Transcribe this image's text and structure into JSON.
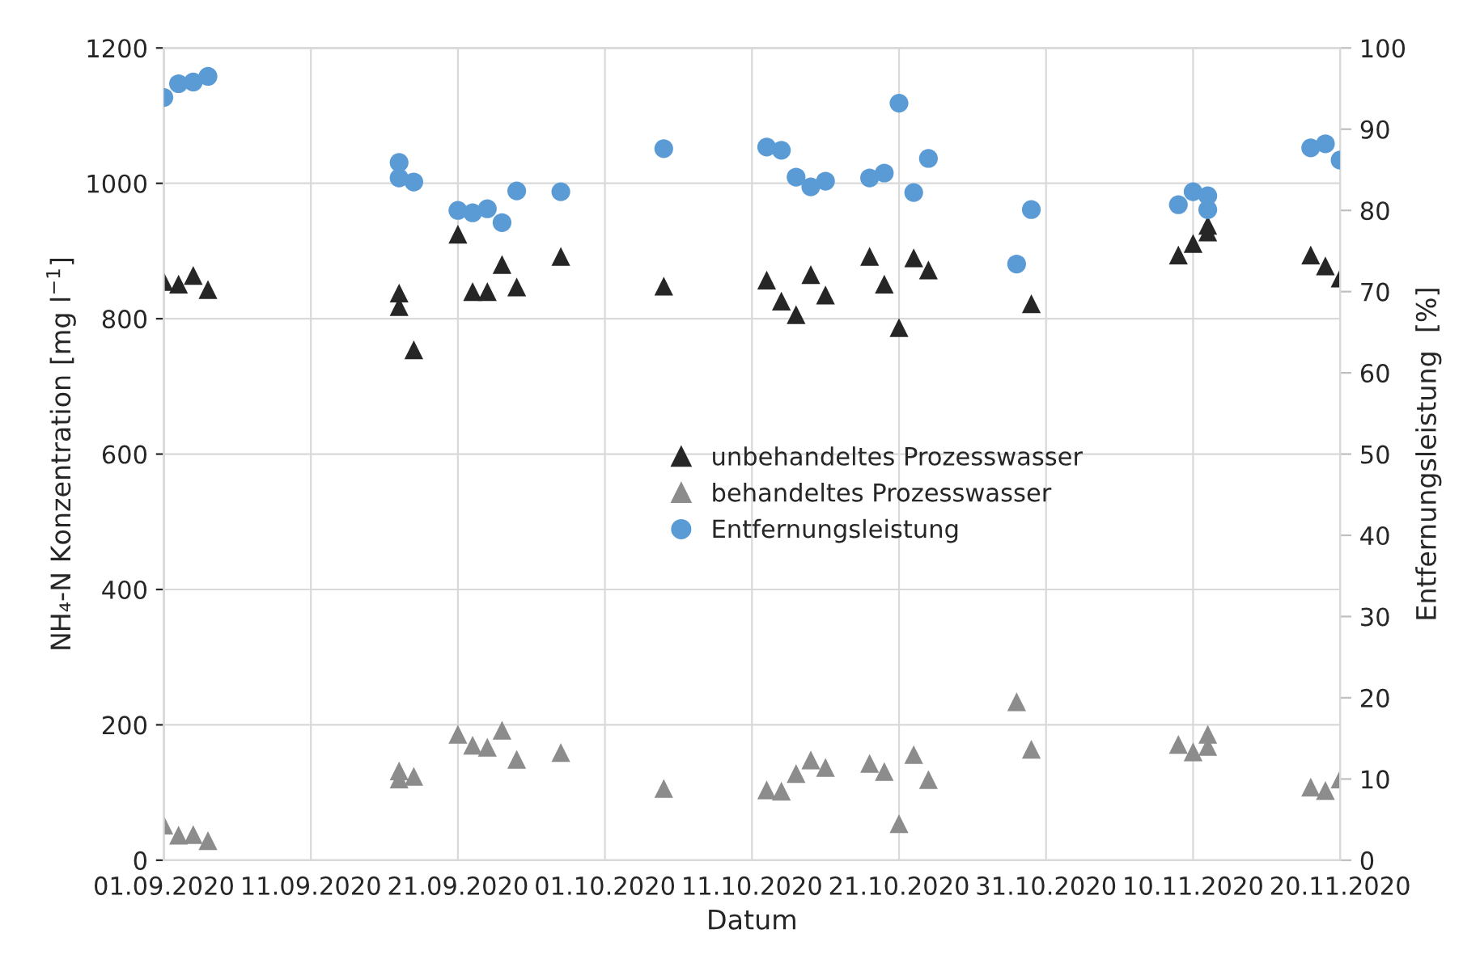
{
  "chart_data": {
    "type": "scatter",
    "xlabel": "Datum",
    "ylabel": "NH₄-N Konzentration [mg l$^{−1}$]",
    "y2label": "Entfernungsleistung  [%]",
    "xlim": [
      "2020-09-01",
      "2020-11-20"
    ],
    "xticks": [
      {
        "value": "2020-09-01",
        "label": "01.09.2020"
      },
      {
        "value": "2020-09-11",
        "label": "11.09.2020"
      },
      {
        "value": "2020-09-21",
        "label": "21.09.2020"
      },
      {
        "value": "2020-10-01",
        "label": "01.10.2020"
      },
      {
        "value": "2020-10-11",
        "label": "11.10.2020"
      },
      {
        "value": "2020-10-21",
        "label": "21.10.2020"
      },
      {
        "value": "2020-10-31",
        "label": "31.10.2020"
      },
      {
        "value": "2020-11-10",
        "label": "10.11.2020"
      },
      {
        "value": "2020-11-20",
        "label": "20.11.2020"
      }
    ],
    "ylim": [
      0,
      1200
    ],
    "yticks": [
      0,
      200,
      400,
      600,
      800,
      1000,
      1200
    ],
    "y2lim": [
      0,
      100
    ],
    "y2ticks": [
      0,
      10,
      20,
      30,
      40,
      50,
      60,
      70,
      80,
      90,
      100
    ],
    "grid": true,
    "legend": "center",
    "series": [
      {
        "name": "unbehandeltes Prozesswasser",
        "color": "#262626",
        "marker": "triangle",
        "x": [
          "2020-09-01",
          "2020-09-02",
          "2020-09-03",
          "2020-09-04",
          "2020-09-17",
          "2020-09-17",
          "2020-09-18",
          "2020-09-21",
          "2020-09-22",
          "2020-09-23",
          "2020-09-24",
          "2020-09-25",
          "2020-09-28",
          "2020-10-05",
          "2020-10-12",
          "2020-10-13",
          "2020-10-14",
          "2020-10-15",
          "2020-10-16",
          "2020-10-19",
          "2020-10-20",
          "2020-10-21",
          "2020-10-22",
          "2020-10-23",
          "2020-10-29",
          "2020-10-30",
          "2020-11-09",
          "2020-11-10",
          "2020-11-11",
          "2020-11-11",
          "2020-11-18",
          "2020-11-19",
          "2020-11-20"
        ],
        "values": [
          855,
          851,
          864,
          843,
          838,
          818,
          754,
          925,
          840,
          840,
          880,
          847,
          892,
          848,
          857,
          826,
          806,
          865,
          835,
          892,
          851,
          787,
          890,
          872,
          null,
          822,
          894,
          911,
          938,
          928,
          894,
          878,
          860
        ]
      },
      {
        "name": "behandeltes Prozesswasser",
        "color": "#8c8c8c",
        "marker": "triangle",
        "x": [
          "2020-09-01",
          "2020-09-02",
          "2020-09-03",
          "2020-09-04",
          "2020-09-17",
          "2020-09-17",
          "2020-09-18",
          "2020-09-21",
          "2020-09-22",
          "2020-09-23",
          "2020-09-24",
          "2020-09-25",
          "2020-09-28",
          "2020-10-05",
          "2020-10-12",
          "2020-10-13",
          "2020-10-14",
          "2020-10-15",
          "2020-10-16",
          "2020-10-19",
          "2020-10-20",
          "2020-10-21",
          "2020-10-22",
          "2020-10-23",
          "2020-10-29",
          "2020-10-30",
          "2020-11-09",
          "2020-11-10",
          "2020-11-11",
          "2020-11-11",
          "2020-11-18",
          "2020-11-19",
          "2020-11-20"
        ],
        "values": [
          52,
          37,
          38,
          29,
          132,
          120,
          124,
          186,
          170,
          167,
          192,
          149,
          159,
          106,
          104,
          102,
          128,
          148,
          137,
          143,
          131,
          54,
          156,
          119,
          234,
          164,
          171,
          160,
          186,
          168,
          108,
          103,
          120
        ]
      },
      {
        "name": "Entfernungsleistung",
        "color": "#5b9bd5",
        "marker": "circle",
        "axis": "y2",
        "x": [
          "2020-09-01",
          "2020-09-02",
          "2020-09-03",
          "2020-09-04",
          "2020-09-17",
          "2020-09-17",
          "2020-09-18",
          "2020-09-21",
          "2020-09-22",
          "2020-09-23",
          "2020-09-24",
          "2020-09-25",
          "2020-09-28",
          "2020-10-05",
          "2020-10-12",
          "2020-10-13",
          "2020-10-14",
          "2020-10-15",
          "2020-10-16",
          "2020-10-19",
          "2020-10-20",
          "2020-10-21",
          "2020-10-22",
          "2020-10-23",
          "2020-10-29",
          "2020-10-30",
          "2020-11-09",
          "2020-11-10",
          "2020-11-11",
          "2020-11-11",
          "2020-11-18",
          "2020-11-19",
          "2020-11-20"
        ],
        "values": [
          93.9,
          95.6,
          95.8,
          96.5,
          85.9,
          84.0,
          83.5,
          80.0,
          79.7,
          80.2,
          78.5,
          82.4,
          82.3,
          87.6,
          87.8,
          87.4,
          84.1,
          82.9,
          83.6,
          84.0,
          84.6,
          93.2,
          82.2,
          86.4,
          73.4,
          80.1,
          80.7,
          82.3,
          81.8,
          80.1,
          87.7,
          88.2,
          86.2
        ]
      }
    ]
  }
}
